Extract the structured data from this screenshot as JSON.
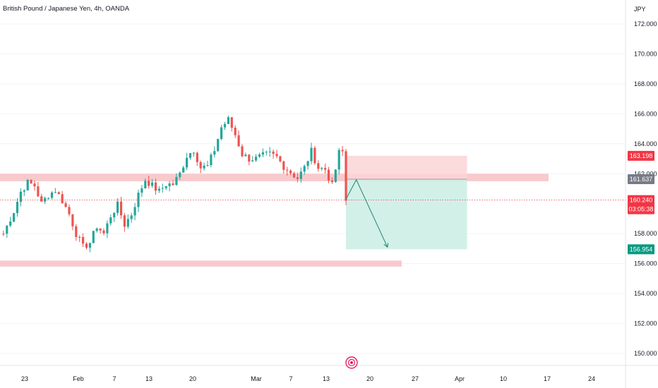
{
  "header": {
    "title": "British Pound / Japanese Yen, 4h, OANDA"
  },
  "price_axis": {
    "currency": "JPY",
    "ticks": [
      "172.000",
      "170.000",
      "168.000",
      "166.000",
      "164.000",
      "162.000",
      "158.000",
      "156.000",
      "154.000",
      "152.000",
      "150.000"
    ]
  },
  "price_labels": {
    "stop": "163.198",
    "entry": "161.637",
    "current": "160.240",
    "countdown": "03:05:38",
    "target": "156.954"
  },
  "time_axis": {
    "labels": [
      "23",
      "Feb",
      "7",
      "13",
      "20",
      "Mar",
      "7",
      "13",
      "20",
      "27",
      "Apr",
      "10",
      "17",
      "24"
    ]
  },
  "colors": {
    "up": "#26a69a",
    "down": "#ef5350",
    "zone": "#f7c4c7",
    "stop_fill": "#fbd5d7",
    "target_fill": "#cdeee6",
    "entry_label": "#787b86",
    "target_label": "#089981",
    "current_label": "#f23645"
  },
  "icons": {
    "bottom_marker": "radio-marker-icon"
  },
  "chart_data": {
    "type": "candlestick",
    "title": "British Pound / Japanese Yen, 4h, OANDA",
    "symbol": "GBPJPY",
    "interval": "4h",
    "source": "OANDA",
    "y_unit": "JPY",
    "ylim": [
      149.2,
      173.6
    ],
    "x_labels": [
      "23",
      "Feb",
      "7",
      "13",
      "20",
      "Mar",
      "7",
      "13",
      "20",
      "27",
      "Apr",
      "10",
      "17",
      "24"
    ],
    "close_path": [
      [
        1,
        158.0
      ],
      [
        4,
        159.5
      ],
      [
        6,
        160.8
      ],
      [
        8,
        161.4
      ],
      [
        10,
        161.2
      ],
      [
        12,
        160.0
      ],
      [
        14,
        160.6
      ],
      [
        16,
        160.9
      ],
      [
        18,
        160.2
      ],
      [
        20,
        159.3
      ],
      [
        22,
        158.0
      ],
      [
        24,
        157.1
      ],
      [
        26,
        157.4
      ],
      [
        28,
        158.5
      ],
      [
        30,
        158.0
      ],
      [
        32,
        159.2
      ],
      [
        34,
        159.9
      ],
      [
        36,
        158.6
      ],
      [
        38,
        159.3
      ],
      [
        40,
        160.6
      ],
      [
        42,
        161.6
      ],
      [
        44,
        161.2
      ],
      [
        46,
        160.8
      ],
      [
        48,
        161.3
      ],
      [
        50,
        161.3
      ],
      [
        52,
        162.0
      ],
      [
        54,
        163.2
      ],
      [
        56,
        163.6
      ],
      [
        58,
        162.4
      ],
      [
        60,
        162.5
      ],
      [
        62,
        163.6
      ],
      [
        64,
        165.1
      ],
      [
        66,
        165.6
      ],
      [
        68,
        164.6
      ],
      [
        70,
        163.3
      ],
      [
        72,
        163.0
      ],
      [
        74,
        163.0
      ],
      [
        76,
        163.2
      ],
      [
        78,
        163.3
      ],
      [
        80,
        163.1
      ],
      [
        82,
        162.5
      ],
      [
        84,
        162.1
      ],
      [
        86,
        161.7
      ],
      [
        88,
        162.4
      ],
      [
        90,
        163.5
      ],
      [
        92,
        162.4
      ],
      [
        94,
        162.3
      ],
      [
        96,
        161.2
      ],
      [
        98,
        163.4
      ],
      [
        99,
        163.5
      ],
      [
        100,
        160.2
      ]
    ],
    "x_index_range": [
      0,
      190
    ],
    "horizontal_zones": [
      {
        "type": "resistance",
        "from": 161.5,
        "to": 162.0
      },
      {
        "type": "support",
        "from": 155.8,
        "to": 156.2
      }
    ],
    "short_position": {
      "stop_loss": 163.198,
      "entry": 161.637,
      "take_profit": 156.954,
      "x_start_index": 100,
      "x_end_index": 135
    },
    "projection_arrow": [
      [
        100,
        160.3
      ],
      [
        103,
        161.6
      ],
      [
        112,
        157.1
      ]
    ],
    "current_price": 160.24,
    "bar_countdown": "03:05:38"
  }
}
